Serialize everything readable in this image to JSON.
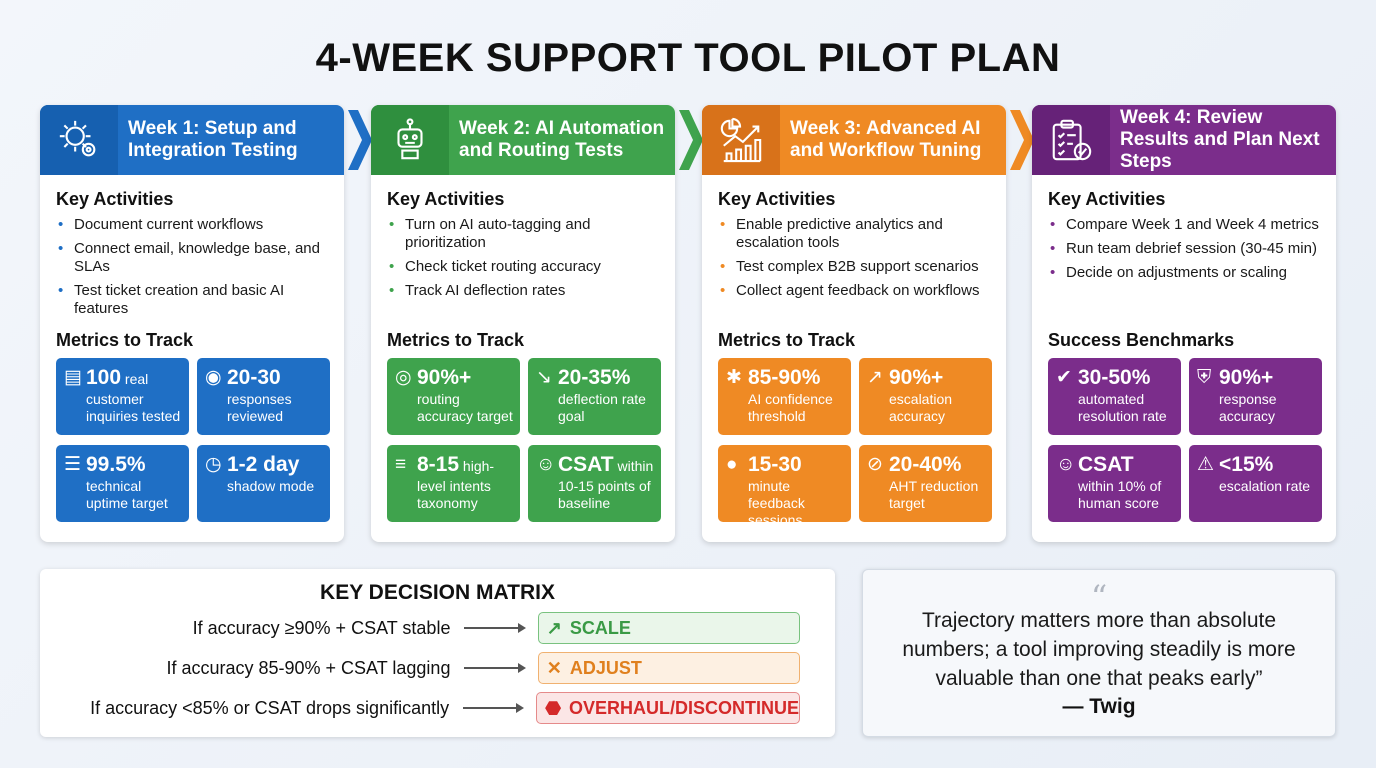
{
  "title": "4-WEEK SUPPORT TOOL PILOT PLAN",
  "colors": {
    "blue": "#1f6fc5",
    "green": "#3fa34d",
    "orange": "#ef8a24",
    "purple": "#7b2d8b"
  },
  "weeks": [
    {
      "title": "Week 1: Setup and Integration Testing",
      "icon": "gear-icon",
      "color": "#1f6fc5",
      "dark": "#1660b0",
      "bullet": "#1f6fc5",
      "activities_heading": "Key Activities",
      "activities": [
        "Document current workflows",
        "Connect email, knowledge base, and SLAs",
        "Test ticket creation and basic AI features"
      ],
      "metrics_heading": "Metrics to Track",
      "metrics": [
        {
          "icon": "document-icon",
          "glyph": "▤",
          "value": "100",
          "suffix": " real",
          "label": "customer inquiries tested"
        },
        {
          "icon": "eye-icon",
          "glyph": "◉",
          "value": "20-30",
          "suffix": "",
          "label": "responses reviewed"
        },
        {
          "icon": "server-icon",
          "glyph": "☰",
          "value": "99.5%",
          "suffix": "",
          "label": "technical uptime target"
        },
        {
          "icon": "clock-icon",
          "glyph": "◷",
          "value": "1-2 day",
          "suffix": "",
          "label": "shadow mode"
        }
      ]
    },
    {
      "title": "Week 2: AI Automation and Routing Tests",
      "icon": "robot-icon",
      "color": "#3fa34d",
      "dark": "#2f8f3e",
      "bullet": "#3fa34d",
      "activities_heading": "Key Activities",
      "activities": [
        "Turn on AI auto-tagging and prioritization",
        "Check ticket routing accuracy",
        "Track AI deflection rates"
      ],
      "metrics_heading": "Metrics to Track",
      "metrics": [
        {
          "icon": "target-icon",
          "glyph": "◎",
          "value": "90%+",
          "suffix": "",
          "label": "routing accuracy target"
        },
        {
          "icon": "trend-down-icon",
          "glyph": "↘",
          "value": "20-35%",
          "suffix": "",
          "label": "deflection rate goal"
        },
        {
          "icon": "list-icon",
          "glyph": "≡",
          "value": "8-15",
          "suffix": " high-",
          "label": "level intents taxonomy"
        },
        {
          "icon": "smiley-icon",
          "glyph": "☺",
          "value": "CSAT",
          "suffix": " within",
          "label": "10-15 points of baseline"
        }
      ]
    },
    {
      "title": "Week 3: Advanced AI and Workflow Tuning",
      "icon": "analytics-icon",
      "color": "#ef8a24",
      "dark": "#d8721a",
      "bullet": "#ef8a24",
      "activities_heading": "Key Activities",
      "activities": [
        "Enable predictive analytics and escalation tools",
        "Test complex B2B support scenarios",
        "Collect agent feedback on workflows"
      ],
      "metrics_heading": "Metrics to Track",
      "metrics": [
        {
          "icon": "brain-icon",
          "glyph": "✱",
          "value": "85-90%",
          "suffix": "",
          "label": "AI confidence threshold"
        },
        {
          "icon": "trend-up-icon",
          "glyph": "↗",
          "value": "90%+",
          "suffix": "",
          "label": "escalation accuracy"
        },
        {
          "icon": "chat-icon",
          "glyph": "●",
          "value": "15-30",
          "suffix": "",
          "label": "minute feedback sessions"
        },
        {
          "icon": "gauge-icon",
          "glyph": "⊘",
          "value": "20-40%",
          "suffix": "",
          "label": "AHT reduction target"
        }
      ]
    },
    {
      "title": "Week 4: Review Results and Plan Next Steps",
      "icon": "checklist-icon",
      "color": "#7b2d8b",
      "dark": "#662278",
      "bullet": "#7b2d8b",
      "activities_heading": "Key Activities",
      "activities": [
        "Compare Week 1 and Week 4 metrics",
        "Run team debrief session (30-45 min)",
        "Decide on adjustments or scaling"
      ],
      "metrics_heading": "Success Benchmarks",
      "metrics": [
        {
          "icon": "check-circle-icon",
          "glyph": "✔",
          "value": "30-50%",
          "suffix": "",
          "label": "automated resolution rate"
        },
        {
          "icon": "shield-icon",
          "glyph": "⛨",
          "value": "90%+",
          "suffix": "",
          "label": "response accuracy"
        },
        {
          "icon": "smiley-icon",
          "glyph": "☺",
          "value": "CSAT",
          "suffix": "",
          "label": "within 10% of human score"
        },
        {
          "icon": "warning-icon",
          "glyph": "⚠",
          "value": "<15%",
          "suffix": "",
          "label": "escalation rate"
        }
      ]
    }
  ],
  "decision_matrix": {
    "title": "KEY DECISION MATRIX",
    "rows": [
      {
        "condition": "If accuracy ≥90% + CSAT stable",
        "result": "SCALE",
        "icon": "trend-up-icon",
        "glyph": "↗",
        "color": "#3a9a45",
        "bg": "#eaf6ea",
        "border": "#79c27f"
      },
      {
        "condition": "If accuracy 85-90% + CSAT lagging",
        "result": "ADJUST",
        "icon": "tools-icon",
        "glyph": "✕",
        "color": "#e0801e",
        "bg": "#fdf0e2",
        "border": "#f0b170"
      },
      {
        "condition": "If accuracy <85% or CSAT drops significantly",
        "result": "OVERHAUL/DISCONTINUE",
        "icon": "stop-icon",
        "glyph": "⬣",
        "color": "#d42a2a",
        "bg": "#fbe6e6",
        "border": "#e58a8a"
      }
    ]
  },
  "quote": {
    "mark": "“",
    "text": "Trajectory matters more than absolute numbers; a tool improving steadily is more valuable than one that peaks early”",
    "author": "— Twig"
  }
}
